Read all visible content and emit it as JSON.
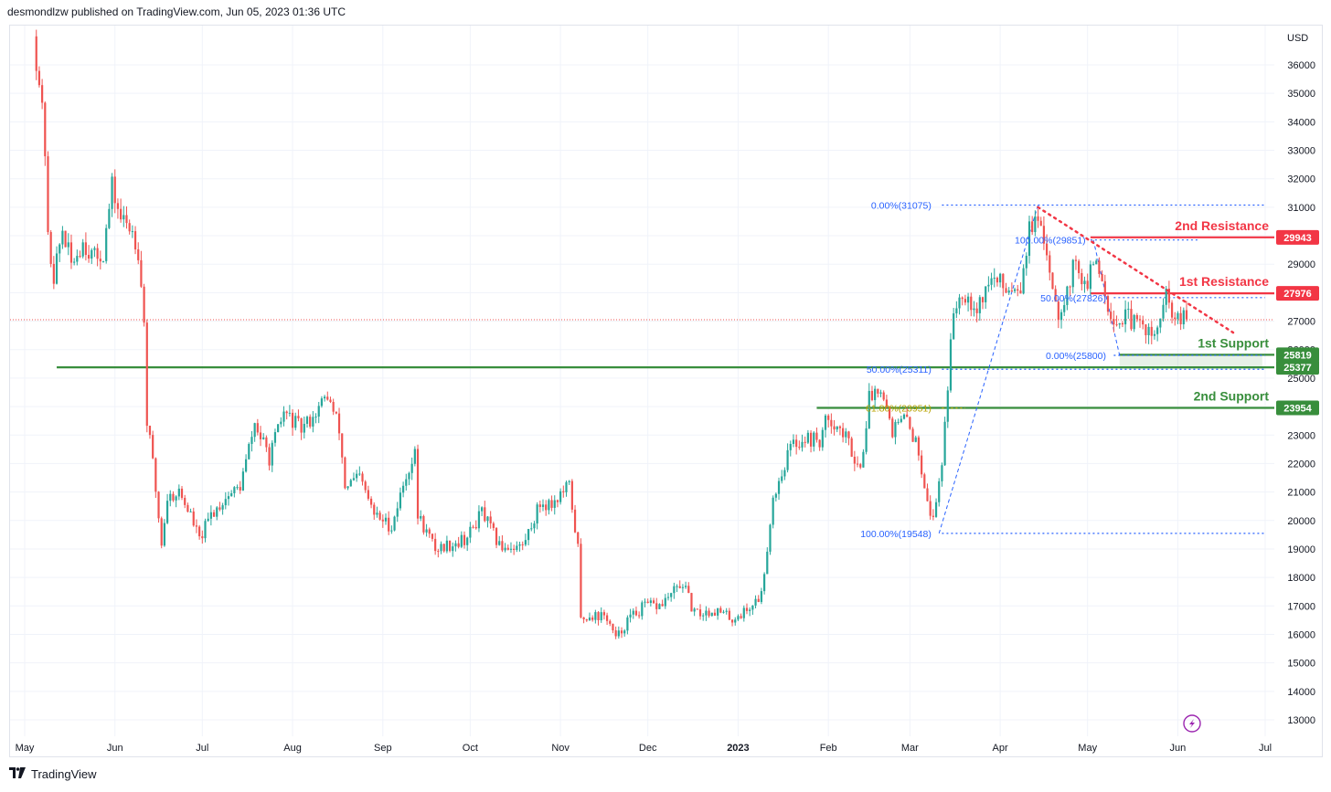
{
  "header": {
    "attribution": "desmondlzw published on TradingView.com, Jun 05, 2023 01:36 UTC"
  },
  "footer": {
    "brand": "TradingView"
  },
  "colors": {
    "up": "#26a69a",
    "down": "#ef5350",
    "support": "#388e3c",
    "resistance": "#f23645",
    "fib": "#2962ff",
    "fib_mid": "#b8a300"
  },
  "chart_data": {
    "type": "candlestick",
    "currency": "USD",
    "y_range": [
      12500,
      37200
    ],
    "y_ticks": [
      13000,
      14000,
      15000,
      16000,
      17000,
      18000,
      19000,
      20000,
      21000,
      22000,
      23000,
      24000,
      25000,
      26000,
      27000,
      28000,
      29000,
      30000,
      31000,
      32000,
      33000,
      34000,
      35000,
      36000
    ],
    "x_labels": [
      {
        "label": "May",
        "date": "2022-05-01",
        "bold": false
      },
      {
        "label": "Jun",
        "date": "2022-06-01",
        "bold": false
      },
      {
        "label": "Jul",
        "date": "2022-07-01",
        "bold": false
      },
      {
        "label": "Aug",
        "date": "2022-08-01",
        "bold": false
      },
      {
        "label": "Sep",
        "date": "2022-09-01",
        "bold": false
      },
      {
        "label": "Oct",
        "date": "2022-10-01",
        "bold": false
      },
      {
        "label": "Nov",
        "date": "2022-11-01",
        "bold": false
      },
      {
        "label": "Dec",
        "date": "2022-12-01",
        "bold": false
      },
      {
        "label": "2023",
        "date": "2023-01-01",
        "bold": true
      },
      {
        "label": "Feb",
        "date": "2023-02-01",
        "bold": false
      },
      {
        "label": "Mar",
        "date": "2023-03-01",
        "bold": false
      },
      {
        "label": "Apr",
        "date": "2023-04-01",
        "bold": false
      },
      {
        "label": "May",
        "date": "2023-05-01",
        "bold": false
      },
      {
        "label": "Jun",
        "date": "2023-06-01",
        "bold": false
      },
      {
        "label": "Jul",
        "date": "2023-07-01",
        "bold": false
      }
    ],
    "x_range": [
      "2022-05-01",
      "2023-07-01"
    ],
    "last_close": 27050,
    "price_path": [
      [
        "2022-05-05",
        37000
      ],
      [
        "2022-05-07",
        35500
      ],
      [
        "2022-05-09",
        33000
      ],
      [
        "2022-05-10",
        29800
      ],
      [
        "2022-05-12",
        28600
      ],
      [
        "2022-05-15",
        30200
      ],
      [
        "2022-05-18",
        29000
      ],
      [
        "2022-05-22",
        29800
      ],
      [
        "2022-05-26",
        29200
      ],
      [
        "2022-05-29",
        29400
      ],
      [
        "2022-06-01",
        31700
      ],
      [
        "2022-06-04",
        30600
      ],
      [
        "2022-06-08",
        30200
      ],
      [
        "2022-06-10",
        29500
      ],
      [
        "2022-06-12",
        27000
      ],
      [
        "2022-06-13",
        23500
      ],
      [
        "2022-06-15",
        22000
      ],
      [
        "2022-06-18",
        19200
      ],
      [
        "2022-06-20",
        20800
      ],
      [
        "2022-06-24",
        21000
      ],
      [
        "2022-06-28",
        20200
      ],
      [
        "2022-07-01",
        19300
      ],
      [
        "2022-07-05",
        20200
      ],
      [
        "2022-07-10",
        20800
      ],
      [
        "2022-07-15",
        21200
      ],
      [
        "2022-07-20",
        23400
      ],
      [
        "2022-07-25",
        22200
      ],
      [
        "2022-07-30",
        23800
      ],
      [
        "2022-08-05",
        23200
      ],
      [
        "2022-08-10",
        23800
      ],
      [
        "2022-08-14",
        24400
      ],
      [
        "2022-08-18",
        23200
      ],
      [
        "2022-08-20",
        21200
      ],
      [
        "2022-08-25",
        21500
      ],
      [
        "2022-08-30",
        20200
      ],
      [
        "2022-09-05",
        19800
      ],
      [
        "2022-09-10",
        21600
      ],
      [
        "2022-09-13",
        22300
      ],
      [
        "2022-09-14",
        20200
      ],
      [
        "2022-09-20",
        19000
      ],
      [
        "2022-09-26",
        19200
      ],
      [
        "2022-10-01",
        19400
      ],
      [
        "2022-10-06",
        20300
      ],
      [
        "2022-10-12",
        19100
      ],
      [
        "2022-10-20",
        19100
      ],
      [
        "2022-10-26",
        20600
      ],
      [
        "2022-10-30",
        20600
      ],
      [
        "2022-11-05",
        21200
      ],
      [
        "2022-11-08",
        19000
      ],
      [
        "2022-11-09",
        16500
      ],
      [
        "2022-11-12",
        16700
      ],
      [
        "2022-11-18",
        16600
      ],
      [
        "2022-11-21",
        15800
      ],
      [
        "2022-11-25",
        16500
      ],
      [
        "2022-12-01",
        17000
      ],
      [
        "2022-12-06",
        17000
      ],
      [
        "2022-12-14",
        17800
      ],
      [
        "2022-12-18",
        16700
      ],
      [
        "2022-12-25",
        16850
      ],
      [
        "2022-12-31",
        16550
      ],
      [
        "2023-01-05",
        16850
      ],
      [
        "2023-01-10",
        17400
      ],
      [
        "2023-01-14",
        20800
      ],
      [
        "2023-01-20",
        22600
      ],
      [
        "2023-01-25",
        22900
      ],
      [
        "2023-01-30",
        22800
      ],
      [
        "2023-02-02",
        23700
      ],
      [
        "2023-02-08",
        22900
      ],
      [
        "2023-02-13",
        21800
      ],
      [
        "2023-02-16",
        24300
      ],
      [
        "2023-02-20",
        24800
      ],
      [
        "2023-02-24",
        23200
      ],
      [
        "2023-03-01",
        23600
      ],
      [
        "2023-03-05",
        22400
      ],
      [
        "2023-03-09",
        20300
      ],
      [
        "2023-03-10",
        20000
      ],
      [
        "2023-03-13",
        22100
      ],
      [
        "2023-03-15",
        24800
      ],
      [
        "2023-03-17",
        27400
      ],
      [
        "2023-03-20",
        28100
      ],
      [
        "2023-03-25",
        27500
      ],
      [
        "2023-03-30",
        28500
      ],
      [
        "2023-04-04",
        28200
      ],
      [
        "2023-04-09",
        28300
      ],
      [
        "2023-04-12",
        30200
      ],
      [
        "2023-04-14",
        30500
      ],
      [
        "2023-04-18",
        29500
      ],
      [
        "2023-04-20",
        28300
      ],
      [
        "2023-04-22",
        27300
      ],
      [
        "2023-04-26",
        28400
      ],
      [
        "2023-04-28",
        29300
      ],
      [
        "2023-05-01",
        28100
      ],
      [
        "2023-05-05",
        29200
      ],
      [
        "2023-05-07",
        28500
      ],
      [
        "2023-05-09",
        27600
      ],
      [
        "2023-05-12",
        26900
      ],
      [
        "2023-05-15",
        27200
      ],
      [
        "2023-05-18",
        26900
      ],
      [
        "2023-05-22",
        26800
      ],
      [
        "2023-05-25",
        26300
      ],
      [
        "2023-05-28",
        27600
      ],
      [
        "2023-05-29",
        27800
      ],
      [
        "2023-06-01",
        27000
      ],
      [
        "2023-06-04",
        27050
      ]
    ],
    "levels": [
      {
        "name": "2nd Resistance",
        "value": 29943,
        "badge": "29943",
        "role": "resistance",
        "from": "2023-05-02"
      },
      {
        "name": "1st Resistance",
        "value": 27976,
        "badge": "27976",
        "role": "resistance",
        "from": "2023-05-02"
      },
      {
        "name": "1st Support",
        "value": 25819,
        "badge": "25819",
        "role": "support",
        "from": "2023-05-12"
      },
      {
        "name": "",
        "value": 25377,
        "badge": "25377",
        "role": "support",
        "from": "2022-05-12"
      },
      {
        "name": "2nd Support",
        "value": 23954,
        "badge": "23954",
        "role": "support",
        "from": "2023-01-28"
      }
    ],
    "fib_labels": [
      {
        "text": "0.00%(31075)",
        "value": 31075,
        "label_at": "2023-03-09",
        "from": "2023-03-12",
        "to": "2023-07-01"
      },
      {
        "text": "100.00%(19548)",
        "value": 19548,
        "label_at": "2023-03-09",
        "from": "2023-03-12",
        "to": "2023-07-01"
      },
      {
        "text": "50.00%(25311)",
        "value": 25311,
        "label_at": "2023-03-09",
        "from": "2023-03-12",
        "to": "2023-07-01"
      },
      {
        "text": "61.80%(23951)",
        "value": 23951,
        "label_at": "2023-03-09",
        "from": "2023-03-12",
        "to": "2023-03-20",
        "mid": true
      },
      {
        "text": "100.00%(29851)",
        "value": 29851,
        "label_at": "2023-05-01",
        "from": "2023-05-02",
        "to": "2023-06-08"
      },
      {
        "text": "50.00%(27826)",
        "value": 27826,
        "label_at": "2023-05-08",
        "from": "2023-05-10",
        "to": "2023-07-01"
      },
      {
        "text": "0.00%(25800)",
        "value": 25800,
        "label_at": "2023-05-08",
        "from": "2023-05-10",
        "to": "2023-07-01"
      }
    ],
    "trendline": [
      [
        "2023-04-14",
        31000
      ],
      [
        "2023-06-20",
        26600
      ]
    ]
  }
}
